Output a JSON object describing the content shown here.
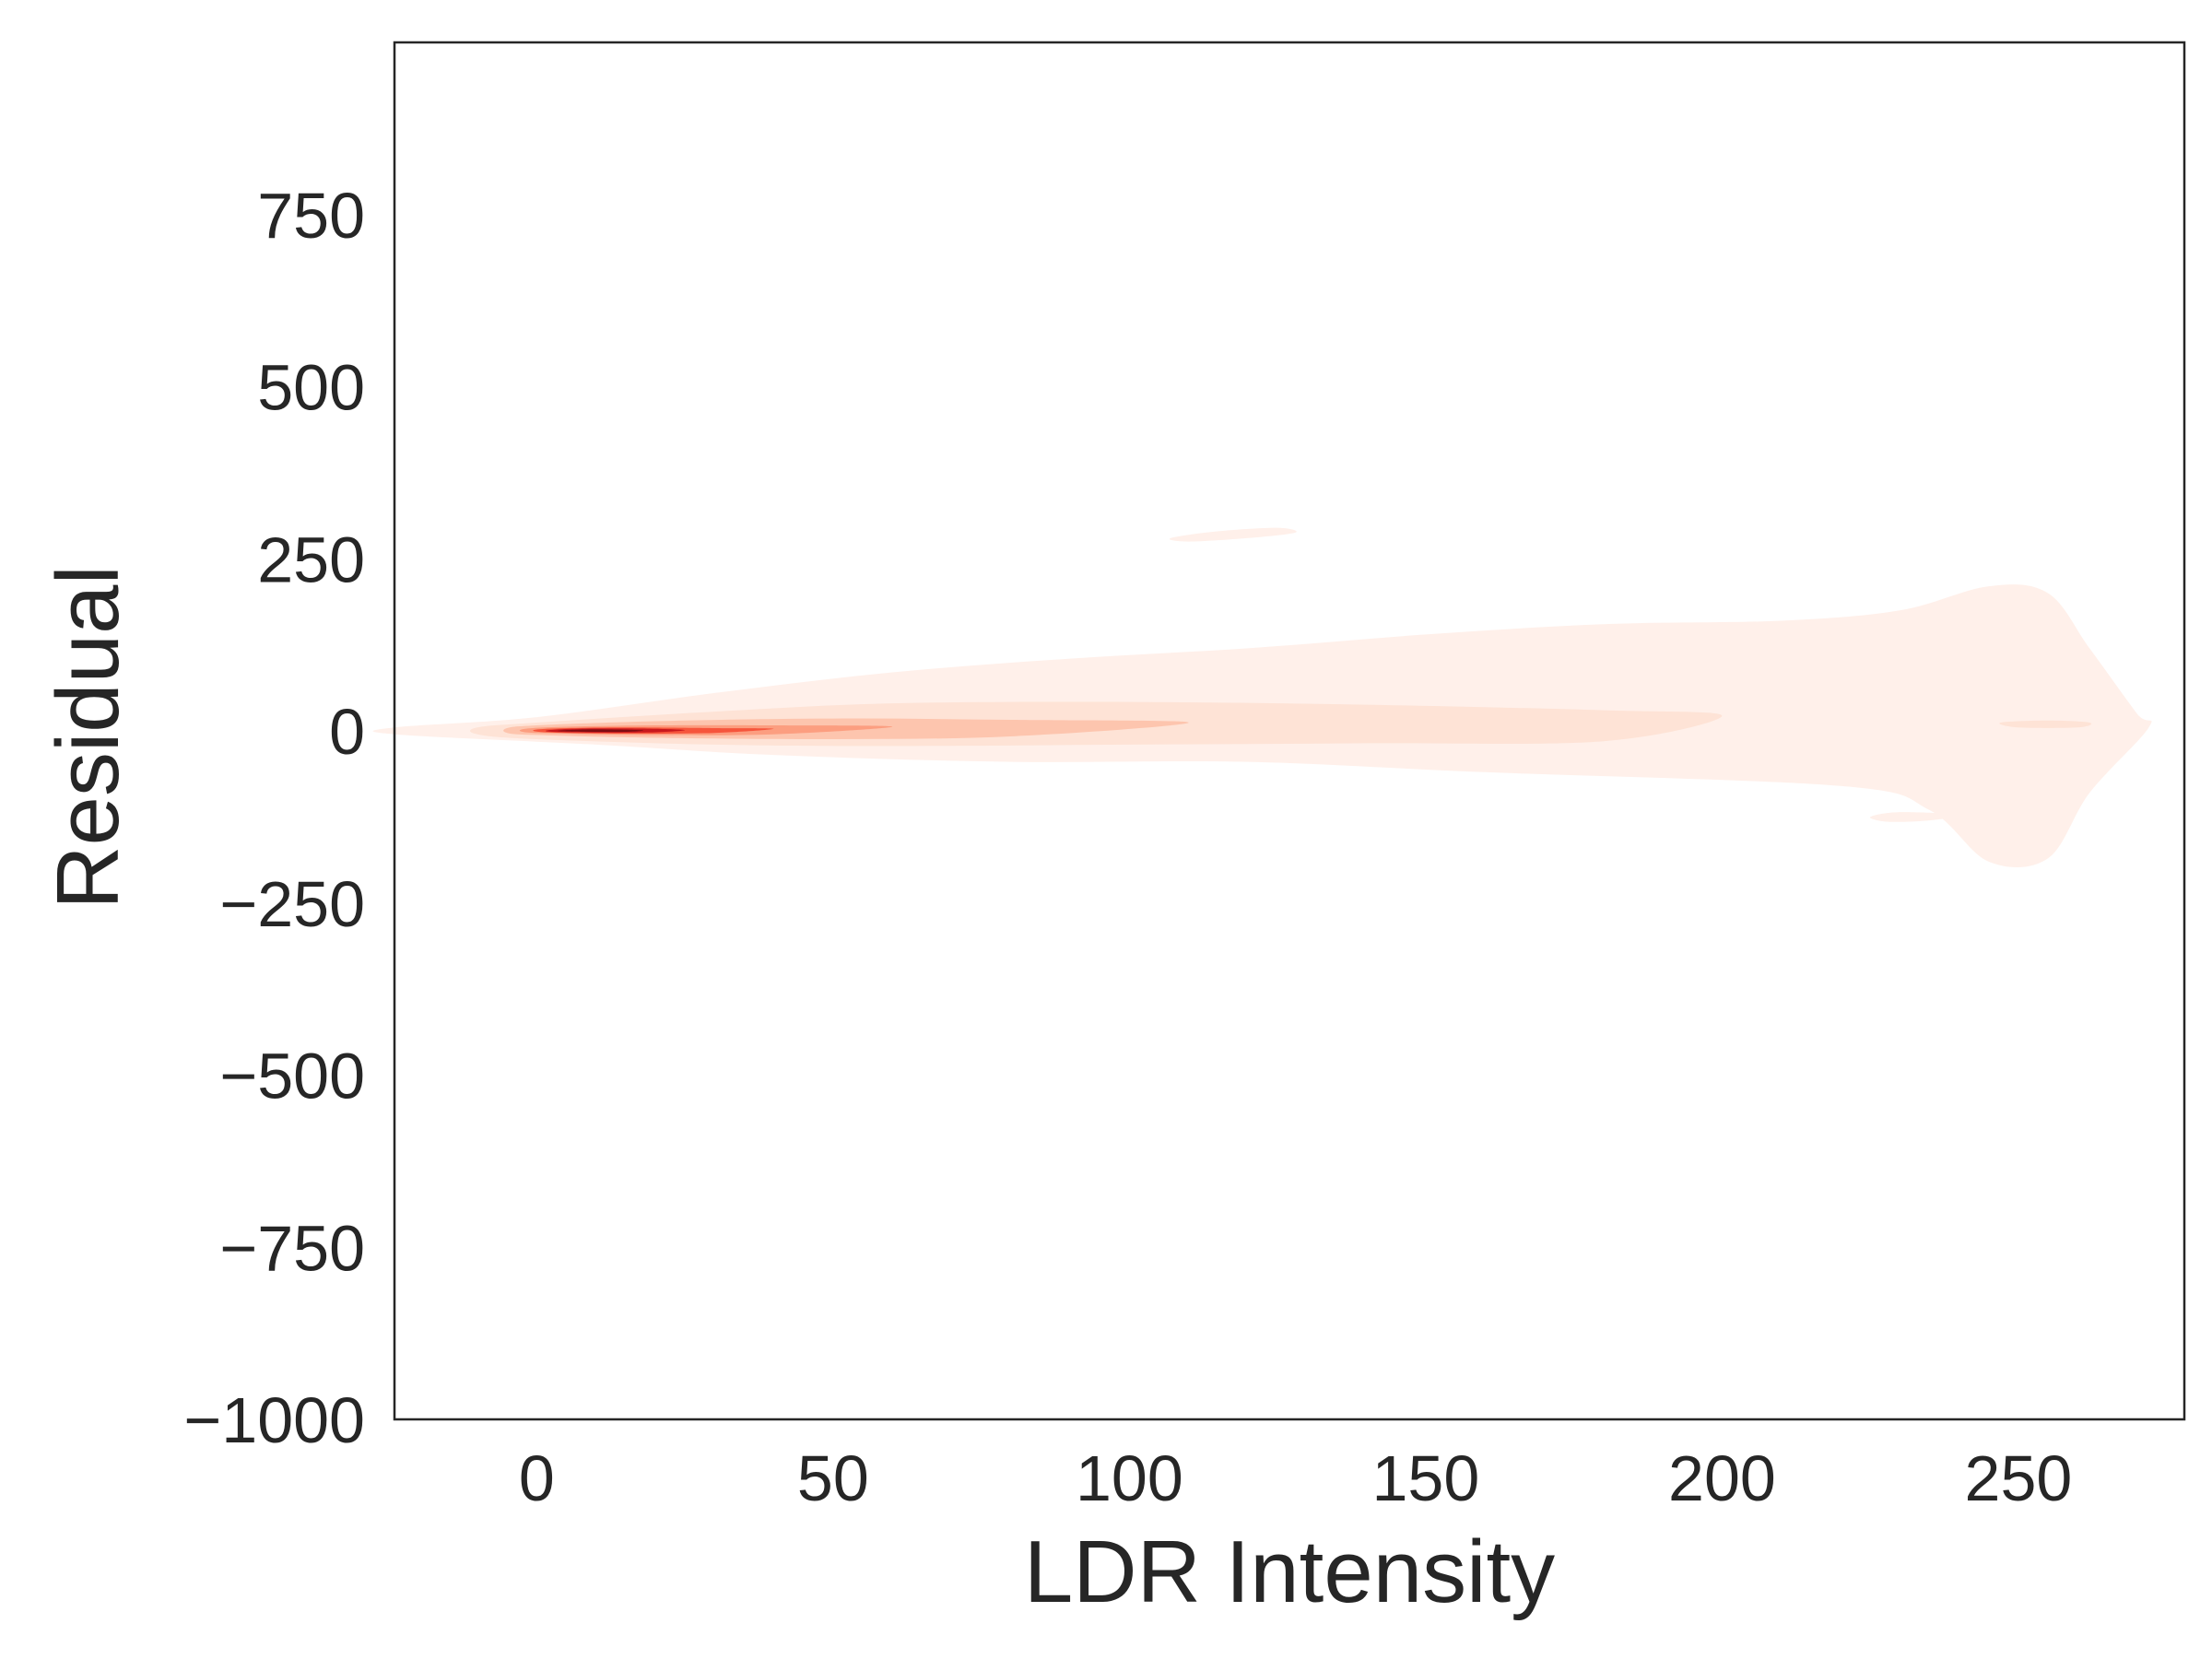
{
  "chart_data": {
    "type": "kde-density",
    "title": "",
    "xlabel": "LDR Intensity",
    "ylabel": "Residual",
    "xlim": [
      -24,
      278
    ],
    "ylim": [
      -1000,
      1000
    ],
    "x_ticks": [
      0,
      50,
      100,
      150,
      200,
      250
    ],
    "y_ticks": [
      -1000,
      -750,
      -500,
      -250,
      0,
      250,
      500,
      750
    ],
    "y_tick_labels": [
      "−1000",
      "−750",
      "−500",
      "−250",
      "0",
      "250",
      "500",
      "750"
    ],
    "grid": false,
    "legend": "none",
    "colormap": "Reds",
    "density_peak": {
      "x": 10,
      "y": 0
    },
    "density_levels": [
      {
        "level": 1,
        "color": "#fff0ea",
        "outline": [
          [
            -24,
            5
          ],
          [
            0,
            20
          ],
          [
            30,
            55
          ],
          [
            60,
            85
          ],
          [
            90,
            105
          ],
          [
            120,
            120
          ],
          [
            150,
            140
          ],
          [
            180,
            155
          ],
          [
            210,
            160
          ],
          [
            230,
            175
          ],
          [
            245,
            210
          ],
          [
            255,
            200
          ],
          [
            262,
            120
          ],
          [
            270,
            25
          ],
          [
            272,
            5
          ],
          [
            262,
            -90
          ],
          [
            255,
            -185
          ],
          [
            245,
            -190
          ],
          [
            235,
            -115
          ],
          [
            220,
            -80
          ],
          [
            160,
            -60
          ],
          [
            120,
            -45
          ],
          [
            80,
            -45
          ],
          [
            40,
            -35
          ],
          [
            10,
            -20
          ],
          [
            -24,
            -5
          ]
        ]
      },
      {
        "level": 2,
        "color": "#fee3d6",
        "outline": [
          [
            -10,
            5
          ],
          [
            0,
            12
          ],
          [
            30,
            28
          ],
          [
            60,
            40
          ],
          [
            100,
            42
          ],
          [
            140,
            38
          ],
          [
            180,
            30
          ],
          [
            200,
            22
          ],
          [
            180,
            -15
          ],
          [
            140,
            -18
          ],
          [
            100,
            -20
          ],
          [
            60,
            -22
          ],
          [
            30,
            -20
          ],
          [
            0,
            -12
          ],
          [
            -10,
            -5
          ]
        ]
      },
      {
        "level": 3,
        "color": "#fdc5ae",
        "outline": [
          [
            -5,
            4
          ],
          [
            0,
            8
          ],
          [
            20,
            14
          ],
          [
            50,
            18
          ],
          [
            80,
            16
          ],
          [
            110,
            12
          ],
          [
            80,
            -8
          ],
          [
            50,
            -12
          ],
          [
            20,
            -10
          ],
          [
            0,
            -6
          ],
          [
            -5,
            -3
          ]
        ]
      },
      {
        "level": 4,
        "color": "#fc9e80",
        "outline": [
          [
            -2,
            3
          ],
          [
            5,
            6
          ],
          [
            20,
            8
          ],
          [
            40,
            8
          ],
          [
            60,
            6
          ],
          [
            40,
            -5
          ],
          [
            20,
            -6
          ],
          [
            5,
            -4
          ],
          [
            -2,
            -2
          ]
        ]
      },
      {
        "level": 5,
        "color": "#f6553c",
        "outline": [
          [
            0,
            2
          ],
          [
            5,
            4
          ],
          [
            15,
            5
          ],
          [
            30,
            4
          ],
          [
            40,
            3
          ],
          [
            30,
            -3
          ],
          [
            15,
            -4
          ],
          [
            5,
            -3
          ],
          [
            0,
            -1
          ]
        ]
      },
      {
        "level": 6,
        "color": "#c9181d",
        "outline": [
          [
            2,
            1
          ],
          [
            6,
            3
          ],
          [
            12,
            3.5
          ],
          [
            20,
            3
          ],
          [
            25,
            1
          ],
          [
            20,
            -2
          ],
          [
            12,
            -2.5
          ],
          [
            6,
            -2
          ],
          [
            2,
            -1
          ]
        ]
      },
      {
        "level": 7,
        "color": "#7f0c12",
        "outline": [
          [
            4,
            0.5
          ],
          [
            8,
            2
          ],
          [
            12,
            2
          ],
          [
            16,
            1.5
          ],
          [
            18,
            0.5
          ],
          [
            16,
            -1
          ],
          [
            12,
            -1.5
          ],
          [
            8,
            -1.2
          ],
          [
            4,
            -0.5
          ]
        ]
      }
    ],
    "detached_regions": [
      {
        "color": "#fff0ea",
        "outline": [
          [
            107,
            280
          ],
          [
            115,
            290
          ],
          [
            125,
            295
          ],
          [
            128,
            288
          ],
          [
            120,
            280
          ],
          [
            110,
            275
          ]
        ]
      },
      {
        "color": "#fff0ea",
        "outline": [
          [
            225,
            -125
          ],
          [
            230,
            -118
          ],
          [
            240,
            -122
          ],
          [
            235,
            -130
          ],
          [
            228,
            -132
          ]
        ]
      },
      {
        "color": "#fee3d6",
        "outline": [
          [
            247,
            12
          ],
          [
            255,
            15
          ],
          [
            262,
            12
          ],
          [
            260,
            5
          ],
          [
            250,
            5
          ]
        ]
      }
    ]
  }
}
